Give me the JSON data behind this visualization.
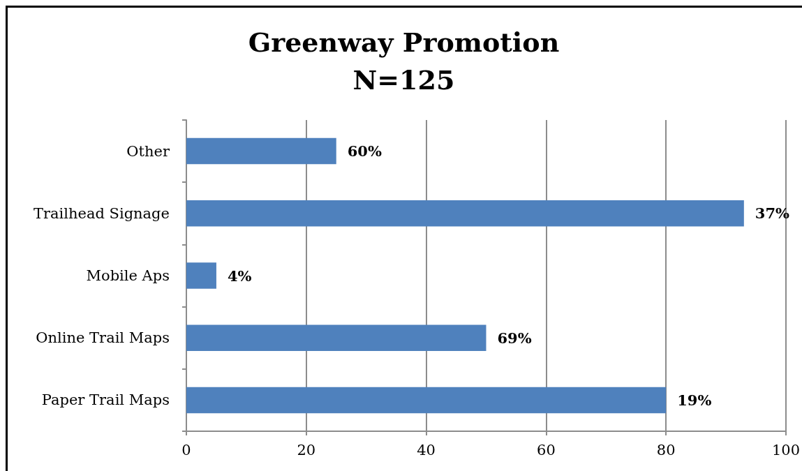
{
  "chart_data": {
    "type": "bar",
    "orientation": "horizontal",
    "title": "Greenway Promotion",
    "subtitle": "N=125",
    "categories": [
      "Other",
      "Trailhead Signage",
      "Mobile Aps",
      "Online Trail Maps",
      "Paper Trail Maps"
    ],
    "values": [
      25,
      93,
      5,
      50,
      80
    ],
    "color": "#4f81bd",
    "annotations": [
      {
        "text": "60%",
        "x": 25,
        "y": "Other"
      },
      {
        "text": "37%",
        "x": 93,
        "y": "Trailhead Signage"
      },
      {
        "text": "4%",
        "x": 5,
        "y": "Mobile Aps"
      },
      {
        "text": "69%",
        "x": 50,
        "y": "Online Trail Maps"
      },
      {
        "text": "19%",
        "x": 80,
        "y": "Paper Trail Maps"
      }
    ],
    "xlim": [
      0,
      100
    ],
    "xticks": [
      0,
      20,
      40,
      60,
      80,
      100
    ],
    "grid": "x"
  }
}
